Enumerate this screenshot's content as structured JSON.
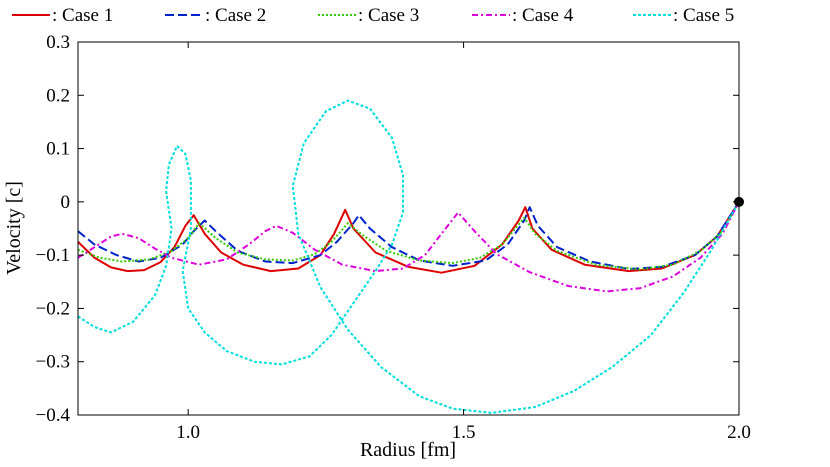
{
  "chart_data": {
    "type": "line",
    "title": "",
    "xlabel": "Radius [fm]",
    "ylabel": "Velocity [c]",
    "xlim": [
      0.8,
      2.0
    ],
    "ylim": [
      -0.4,
      0.3
    ],
    "xticks": [
      {
        "value": 1.0,
        "label": "1.0"
      },
      {
        "value": 1.5,
        "label": "1.5"
      },
      {
        "value": 2.0,
        "label": "2.0"
      }
    ],
    "yticks": [
      {
        "value": 0.3,
        "label": "0.3"
      },
      {
        "value": 0.2,
        "label": "0.2"
      },
      {
        "value": 0.1,
        "label": "0.1"
      },
      {
        "value": 0.0,
        "label": "0"
      },
      {
        "value": -0.1,
        "label": "−0.1"
      },
      {
        "value": -0.2,
        "label": "−0.2"
      },
      {
        "value": -0.3,
        "label": "−0.3"
      },
      {
        "value": -0.4,
        "label": "−0.4"
      }
    ],
    "grid": false,
    "legend_position": "top",
    "series": [
      {
        "name": ": Case 1",
        "color": "#dd0000",
        "dash": "solid",
        "points": [
          [
            0.8,
            -0.075
          ],
          [
            0.83,
            -0.105
          ],
          [
            0.86,
            -0.123
          ],
          [
            0.89,
            -0.13
          ],
          [
            0.92,
            -0.128
          ],
          [
            0.95,
            -0.113
          ],
          [
            0.975,
            -0.085
          ],
          [
            0.995,
            -0.045
          ],
          [
            1.01,
            -0.025
          ],
          [
            1.03,
            -0.06
          ],
          [
            1.06,
            -0.095
          ],
          [
            1.1,
            -0.118
          ],
          [
            1.15,
            -0.13
          ],
          [
            1.2,
            -0.125
          ],
          [
            1.24,
            -0.1
          ],
          [
            1.265,
            -0.06
          ],
          [
            1.285,
            -0.015
          ],
          [
            1.3,
            -0.05
          ],
          [
            1.34,
            -0.095
          ],
          [
            1.4,
            -0.122
          ],
          [
            1.46,
            -0.133
          ],
          [
            1.52,
            -0.12
          ],
          [
            1.57,
            -0.08
          ],
          [
            1.6,
            -0.035
          ],
          [
            1.612,
            -0.01
          ],
          [
            1.625,
            -0.05
          ],
          [
            1.66,
            -0.09
          ],
          [
            1.72,
            -0.118
          ],
          [
            1.8,
            -0.13
          ],
          [
            1.86,
            -0.125
          ],
          [
            1.92,
            -0.1
          ],
          [
            1.96,
            -0.065
          ],
          [
            2.0,
            0.0
          ]
        ]
      },
      {
        "name": ": Case 2",
        "color": "#0022cc",
        "dash": "dashed",
        "points": [
          [
            0.8,
            -0.055
          ],
          [
            0.83,
            -0.08
          ],
          [
            0.87,
            -0.1
          ],
          [
            0.91,
            -0.112
          ],
          [
            0.95,
            -0.105
          ],
          [
            0.99,
            -0.08
          ],
          [
            1.01,
            -0.055
          ],
          [
            1.03,
            -0.035
          ],
          [
            1.05,
            -0.055
          ],
          [
            1.09,
            -0.092
          ],
          [
            1.14,
            -0.112
          ],
          [
            1.19,
            -0.115
          ],
          [
            1.24,
            -0.1
          ],
          [
            1.27,
            -0.075
          ],
          [
            1.3,
            -0.04
          ],
          [
            1.31,
            -0.025
          ],
          [
            1.33,
            -0.05
          ],
          [
            1.37,
            -0.085
          ],
          [
            1.42,
            -0.11
          ],
          [
            1.48,
            -0.12
          ],
          [
            1.54,
            -0.11
          ],
          [
            1.58,
            -0.08
          ],
          [
            1.61,
            -0.035
          ],
          [
            1.62,
            -0.01
          ],
          [
            1.635,
            -0.045
          ],
          [
            1.67,
            -0.085
          ],
          [
            1.73,
            -0.112
          ],
          [
            1.8,
            -0.126
          ],
          [
            1.86,
            -0.122
          ],
          [
            1.92,
            -0.1
          ],
          [
            1.96,
            -0.065
          ],
          [
            2.0,
            0.0
          ]
        ]
      },
      {
        "name": ": Case 3",
        "color": "#33cc00",
        "dash": "dotted",
        "points": [
          [
            0.8,
            -0.09
          ],
          [
            0.84,
            -0.105
          ],
          [
            0.88,
            -0.112
          ],
          [
            0.93,
            -0.108
          ],
          [
            0.97,
            -0.092
          ],
          [
            1.0,
            -0.068
          ],
          [
            1.02,
            -0.04
          ],
          [
            1.05,
            -0.068
          ],
          [
            1.09,
            -0.095
          ],
          [
            1.14,
            -0.108
          ],
          [
            1.19,
            -0.11
          ],
          [
            1.23,
            -0.098
          ],
          [
            1.26,
            -0.075
          ],
          [
            1.29,
            -0.04
          ],
          [
            1.32,
            -0.065
          ],
          [
            1.36,
            -0.092
          ],
          [
            1.42,
            -0.11
          ],
          [
            1.48,
            -0.115
          ],
          [
            1.53,
            -0.105
          ],
          [
            1.57,
            -0.08
          ],
          [
            1.61,
            -0.03
          ],
          [
            1.63,
            -0.06
          ],
          [
            1.67,
            -0.092
          ],
          [
            1.74,
            -0.118
          ],
          [
            1.82,
            -0.127
          ],
          [
            1.88,
            -0.118
          ],
          [
            1.93,
            -0.092
          ],
          [
            1.97,
            -0.055
          ],
          [
            2.0,
            0.0
          ]
        ]
      },
      {
        "name": ": Case 4",
        "color": "#dd00dd",
        "dash": "dashdot",
        "points": [
          [
            0.8,
            -0.105
          ],
          [
            0.83,
            -0.085
          ],
          [
            0.86,
            -0.065
          ],
          [
            0.88,
            -0.06
          ],
          [
            0.91,
            -0.068
          ],
          [
            0.94,
            -0.088
          ],
          [
            0.97,
            -0.105
          ],
          [
            1.02,
            -0.118
          ],
          [
            1.07,
            -0.108
          ],
          [
            1.11,
            -0.08
          ],
          [
            1.14,
            -0.055
          ],
          [
            1.16,
            -0.045
          ],
          [
            1.19,
            -0.058
          ],
          [
            1.23,
            -0.09
          ],
          [
            1.28,
            -0.118
          ],
          [
            1.34,
            -0.13
          ],
          [
            1.39,
            -0.125
          ],
          [
            1.43,
            -0.1
          ],
          [
            1.46,
            -0.06
          ],
          [
            1.49,
            -0.02
          ],
          [
            1.52,
            -0.055
          ],
          [
            1.56,
            -0.098
          ],
          [
            1.62,
            -0.132
          ],
          [
            1.69,
            -0.158
          ],
          [
            1.76,
            -0.168
          ],
          [
            1.82,
            -0.162
          ],
          [
            1.88,
            -0.14
          ],
          [
            1.93,
            -0.105
          ],
          [
            1.97,
            -0.06
          ],
          [
            2.0,
            0.0
          ]
        ]
      },
      {
        "name": ": Case 5",
        "color": "#00dddd",
        "dash": "densedot",
        "points": [
          [
            0.8,
            -0.215
          ],
          [
            0.83,
            -0.235
          ],
          [
            0.86,
            -0.245
          ],
          [
            0.9,
            -0.225
          ],
          [
            0.94,
            -0.175
          ],
          [
            0.96,
            -0.12
          ],
          [
            0.97,
            -0.05
          ],
          [
            0.96,
            0.02
          ],
          [
            0.965,
            0.07
          ],
          [
            0.98,
            0.105
          ],
          [
            0.995,
            0.09
          ],
          [
            1.005,
            0.04
          ],
          [
            1.005,
            -0.05
          ],
          [
            0.99,
            -0.13
          ],
          [
            1.0,
            -0.2
          ],
          [
            1.03,
            -0.245
          ],
          [
            1.07,
            -0.28
          ],
          [
            1.12,
            -0.3
          ],
          [
            1.17,
            -0.305
          ],
          [
            1.22,
            -0.29
          ],
          [
            1.26,
            -0.25
          ],
          [
            1.3,
            -0.19
          ],
          [
            1.34,
            -0.13
          ],
          [
            1.37,
            -0.08
          ],
          [
            1.39,
            -0.02
          ],
          [
            1.39,
            0.05
          ],
          [
            1.37,
            0.12
          ],
          [
            1.33,
            0.175
          ],
          [
            1.29,
            0.19
          ],
          [
            1.25,
            0.17
          ],
          [
            1.21,
            0.11
          ],
          [
            1.19,
            0.03
          ],
          [
            1.2,
            -0.06
          ],
          [
            1.24,
            -0.16
          ],
          [
            1.29,
            -0.24
          ],
          [
            1.35,
            -0.31
          ],
          [
            1.42,
            -0.365
          ],
          [
            1.48,
            -0.388
          ],
          [
            1.55,
            -0.396
          ],
          [
            1.63,
            -0.385
          ],
          [
            1.7,
            -0.355
          ],
          [
            1.77,
            -0.31
          ],
          [
            1.84,
            -0.25
          ],
          [
            1.9,
            -0.17
          ],
          [
            1.95,
            -0.09
          ],
          [
            2.0,
            0.0
          ]
        ]
      }
    ],
    "marker": {
      "x": 2.0,
      "y": 0.0,
      "color": "#000000"
    }
  }
}
